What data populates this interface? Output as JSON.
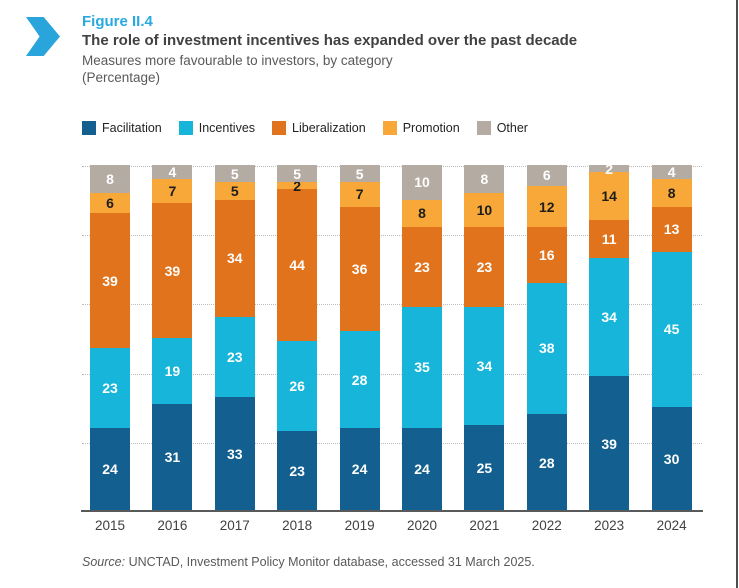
{
  "figure_label": "Figure II.4",
  "title": "The role of investment incentives has expanded over the past decade",
  "subtitle": "Measures more favourable to investors, by category",
  "unit_note": "(Percentage)",
  "source": {
    "prefix": "Source:",
    "text": " UNCTAD, Investment Policy Monitor database, accessed 31 March 2025."
  },
  "colors": {
    "accent_cyan": "#29a9e0",
    "chevron": "#2aa5dc",
    "title_text": "#414042",
    "subtitle_text": "#58595b",
    "axis": "#58595b",
    "gridline": "#bdbdbd",
    "page_edge": "#4d4d4f"
  },
  "chart_data": {
    "type": "bar",
    "stacked": true,
    "title": "Measures more favourable to investors, by category (Percentage)",
    "xlabel": "",
    "ylabel": "Percentage",
    "ylim": [
      0,
      100
    ],
    "gridlines": [
      20,
      40,
      60,
      80,
      100
    ],
    "grid_style": "dotted",
    "legend_position": "top",
    "categories": [
      "2015",
      "2016",
      "2017",
      "2018",
      "2019",
      "2020",
      "2021",
      "2022",
      "2023",
      "2024"
    ],
    "series": [
      {
        "name": "Facilitation",
        "color": "#135f8f",
        "label_color": "#ffffff",
        "values": [
          24,
          31,
          33,
          23,
          24,
          24,
          25,
          28,
          39,
          30
        ]
      },
      {
        "name": "Incentives",
        "color": "#17b5d9",
        "label_color": "#ffffff",
        "values": [
          23,
          19,
          23,
          26,
          28,
          35,
          34,
          38,
          34,
          45
        ]
      },
      {
        "name": "Liberalization",
        "color": "#e1731d",
        "label_color": "#ffffff",
        "values": [
          39,
          39,
          34,
          44,
          36,
          23,
          23,
          16,
          11,
          13
        ]
      },
      {
        "name": "Promotion",
        "color": "#f7a839",
        "label_color": "#1d1d1b",
        "values": [
          6,
          7,
          5,
          2,
          7,
          8,
          10,
          12,
          14,
          8
        ]
      },
      {
        "name": "Other",
        "color": "#b4aba3",
        "label_color": "#ffffff",
        "values": [
          8,
          4,
          5,
          5,
          5,
          10,
          8,
          6,
          2,
          4
        ]
      }
    ]
  }
}
